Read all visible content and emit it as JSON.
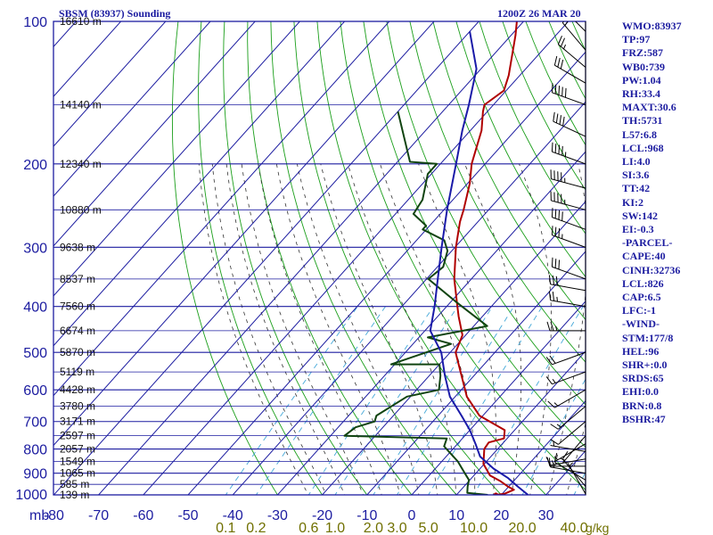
{
  "header": {
    "title": "SBSM (83937) Sounding",
    "time": "1200Z 26 MAR 20"
  },
  "indices": [
    "WMO:83937",
    "TP:97",
    "FRZ:587",
    "WB0:739",
    "PW:1.04",
    "RH:33.4",
    "MAXT:30.6",
    "TH:5731",
    "L57:6.8",
    "LCL:968",
    "LI:4.0",
    "SI:3.6",
    "TT:42",
    "KI:2",
    "SW:142",
    "EI:-0.3",
    "-PARCEL-",
    "CAPE:40",
    "CINH:32736",
    "LCL:826",
    "CAP:6.5",
    "LFC:-1",
    "-WIND-",
    "STM:177/8",
    "HEL:96",
    "SHR+:0.0",
    "SRDS:65",
    "EHI:0.0",
    "BRN:0.8",
    "BSHR:47"
  ],
  "chart_data": {
    "type": "line",
    "title": "SBSM (83937) Sounding",
    "xlabel": "",
    "ylabel": "mb",
    "xlim": [
      -80,
      30
    ],
    "ylim": [
      1000,
      100
    ],
    "x_ticks": [
      "-80",
      "-70",
      "-60",
      "-50",
      "-40",
      "-30",
      "-20",
      "-10",
      "0",
      "10",
      "20",
      "30"
    ],
    "pressure_ticks": [
      "100",
      "200",
      "300",
      "400",
      "500",
      "600",
      "700",
      "800",
      "900",
      "1000"
    ],
    "mixing_ratio_ticks": [
      "0.1",
      "0.2",
      "0.6",
      "1.0",
      "2.0",
      "3.0",
      "5.0",
      "10.0",
      "20.0",
      "40.0"
    ],
    "mixing_ratio_unit": "g/kg",
    "mb_label": "mb",
    "height_labels": [
      {
        "p": 100,
        "label": "16610 m"
      },
      {
        "p": 150,
        "label": "14140 m"
      },
      {
        "p": 200,
        "label": "12340 m"
      },
      {
        "p": 250,
        "label": "10880 m"
      },
      {
        "p": 300,
        "label": "9638 m"
      },
      {
        "p": 350,
        "label": "8537 m"
      },
      {
        "p": 400,
        "label": "7560 m"
      },
      {
        "p": 450,
        "label": "6674 m"
      },
      {
        "p": 500,
        "label": "5870 m"
      },
      {
        "p": 550,
        "label": "5119 m"
      },
      {
        "p": 600,
        "label": "4428 m"
      },
      {
        "p": 650,
        "label": "3780 m"
      },
      {
        "p": 700,
        "label": "3171 m"
      },
      {
        "p": 750,
        "label": "2597 m"
      },
      {
        "p": 800,
        "label": "2057 m"
      },
      {
        "p": 850,
        "label": "1549 m"
      },
      {
        "p": 900,
        "label": "1065 m"
      },
      {
        "p": 950,
        "label": "585 m"
      },
      {
        "p": 1000,
        "label": "139 m"
      }
    ],
    "series": [
      {
        "color": "#b00000",
        "points": [
          [
            18.8,
            1000
          ],
          [
            20.5,
            995
          ],
          [
            21.8,
            975
          ],
          [
            19.8,
            960
          ],
          [
            17.0,
            935
          ],
          [
            13.6,
            910
          ],
          [
            9.8,
            860
          ],
          [
            7.0,
            800
          ],
          [
            6.7,
            775
          ],
          [
            9.3,
            760
          ],
          [
            7.8,
            730
          ],
          [
            -0.8,
            680
          ],
          [
            -7.4,
            620
          ],
          [
            -18.8,
            500
          ],
          [
            -20.7,
            460
          ],
          [
            -25.3,
            420
          ],
          [
            -27.6,
            400
          ],
          [
            -33.8,
            350
          ],
          [
            -39.8,
            300
          ],
          [
            -44.0,
            265
          ],
          [
            -45.6,
            250
          ],
          [
            -49.5,
            220
          ],
          [
            -53.0,
            200
          ],
          [
            -57.5,
            170
          ],
          [
            -61.0,
            155
          ],
          [
            -62.0,
            150
          ],
          [
            -60.5,
            140
          ],
          [
            -62.5,
            130
          ],
          [
            -69.0,
            107
          ],
          [
            -71.5,
            100
          ]
        ]
      },
      {
        "color": "#114411",
        "points": [
          [
            17.0,
            1000
          ],
          [
            12.0,
            990
          ],
          [
            10.8,
            960
          ],
          [
            9.8,
            930
          ],
          [
            7.5,
            900
          ],
          [
            3.6,
            850
          ],
          [
            -2.5,
            790
          ],
          [
            -3.5,
            760
          ],
          [
            -26.9,
            750
          ],
          [
            -26.1,
            720
          ],
          [
            -23.0,
            700
          ],
          [
            -23.8,
            680
          ],
          [
            -20.8,
            620
          ],
          [
            -15.0,
            600
          ],
          [
            -17.5,
            560
          ],
          [
            -20.0,
            530
          ],
          [
            -30.8,
            530
          ],
          [
            -21.5,
            480
          ],
          [
            -28.0,
            465
          ],
          [
            -17.0,
            440
          ],
          [
            -29.1,
            390
          ],
          [
            -39.6,
            350
          ],
          [
            -38.7,
            330
          ],
          [
            -41.0,
            305
          ],
          [
            -43.8,
            290
          ],
          [
            -50.8,
            275
          ],
          [
            -50.8,
            270
          ],
          [
            -56.0,
            255
          ],
          [
            -56.8,
            238
          ],
          [
            -60.8,
            210
          ],
          [
            -60.8,
            200
          ],
          [
            -67.2,
            198
          ],
          [
            -80,
            155
          ]
        ]
      },
      {
        "color": "#1a1aa8",
        "points": [
          [
            26.0,
            1000
          ],
          [
            22.0,
            960
          ],
          [
            18.0,
            920
          ],
          [
            13.0,
            880
          ],
          [
            7.6,
            830
          ],
          [
            4.0,
            780
          ],
          [
            0.0,
            730
          ],
          [
            -4.8,
            680
          ],
          [
            -11.2,
            620
          ],
          [
            -16.5,
            560
          ],
          [
            -22.0,
            500
          ],
          [
            -28.8,
            450
          ],
          [
            -32.7,
            400
          ],
          [
            -37.5,
            350
          ],
          [
            -43.0,
            300
          ],
          [
            -49.3,
            250
          ],
          [
            -56.5,
            200
          ],
          [
            -61.8,
            170
          ],
          [
            -65.5,
            150
          ],
          [
            -71.0,
            126
          ],
          [
            -80,
            105
          ]
        ]
      }
    ],
    "winds": [
      {
        "p": 995,
        "dir": 330,
        "kt": 5
      },
      {
        "p": 960,
        "dir": 320,
        "kt": 10
      },
      {
        "p": 930,
        "dir": 300,
        "kt": 10
      },
      {
        "p": 900,
        "dir": 280,
        "kt": 15
      },
      {
        "p": 870,
        "dir": 270,
        "kt": 10
      },
      {
        "p": 840,
        "dir": 260,
        "kt": 15
      },
      {
        "p": 810,
        "dir": 280,
        "kt": 5
      },
      {
        "p": 780,
        "dir": 240,
        "kt": 5
      },
      {
        "p": 750,
        "dir": 220,
        "kt": 5
      },
      {
        "p": 700,
        "dir": 230,
        "kt": 10
      },
      {
        "p": 650,
        "dir": 230,
        "kt": 15
      },
      {
        "p": 600,
        "dir": 240,
        "kt": 15
      },
      {
        "p": 550,
        "dir": 250,
        "kt": 15
      },
      {
        "p": 500,
        "dir": 250,
        "kt": 20
      },
      {
        "p": 450,
        "dir": 270,
        "kt": 25
      },
      {
        "p": 400,
        "dir": 280,
        "kt": 25
      },
      {
        "p": 370,
        "dir": 280,
        "kt": 30
      },
      {
        "p": 350,
        "dir": 290,
        "kt": 30
      },
      {
        "p": 300,
        "dir": 290,
        "kt": 35
      },
      {
        "p": 275,
        "dir": 290,
        "kt": 40
      },
      {
        "p": 250,
        "dir": 285,
        "kt": 45
      },
      {
        "p": 225,
        "dir": 285,
        "kt": 45
      },
      {
        "p": 200,
        "dir": 290,
        "kt": 45
      },
      {
        "p": 175,
        "dir": 295,
        "kt": 40
      },
      {
        "p": 150,
        "dir": 290,
        "kt": 50
      },
      {
        "p": 135,
        "dir": 300,
        "kt": 30
      },
      {
        "p": 125,
        "dir": 310,
        "kt": 25
      },
      {
        "p": 115,
        "dir": 320,
        "kt": 20
      },
      {
        "p": 105,
        "dir": 315,
        "kt": 20
      }
    ],
    "colors": {
      "frame": "#1c1ca0",
      "dry_adiabat": "#1a9e1a",
      "moist_adiabat": "#333333",
      "mixing_ratio": "#44a8d8",
      "tick_labels": "#1c1ca0"
    }
  }
}
